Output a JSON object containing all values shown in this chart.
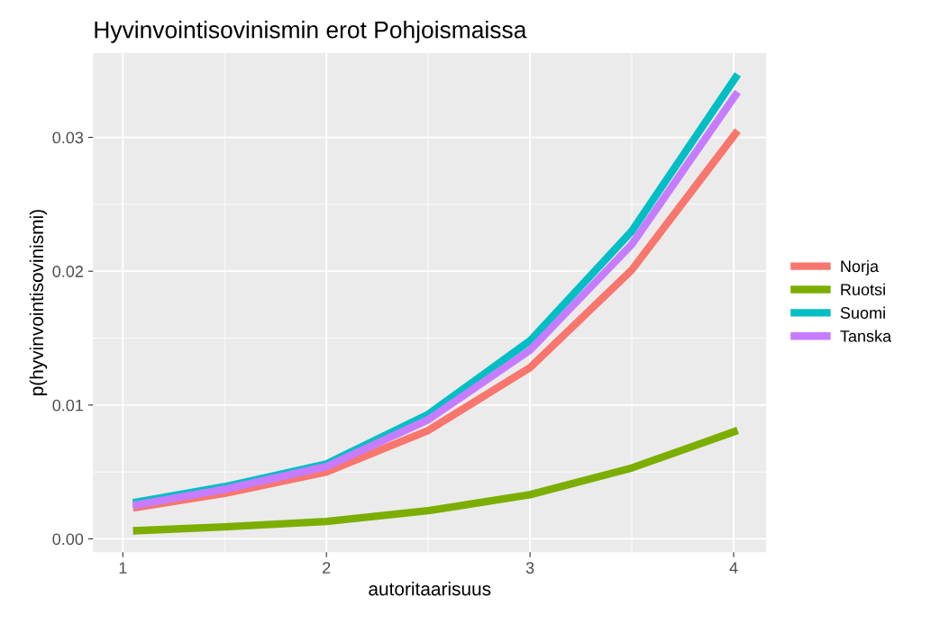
{
  "chart_data": {
    "type": "line",
    "title": "Hyvinvointisovinismin erot Pohjoismaissa",
    "xlabel": "autoritaarisuus",
    "ylabel": "p(hyvinvointisovinismi)",
    "legend": "right",
    "grid": true,
    "marker": "none",
    "line_style": "solid",
    "x": [
      1.05,
      1.5,
      2,
      2.5,
      3,
      3.5,
      4.02
    ],
    "xlim": [
      0.854,
      4.16
    ],
    "xticks": [
      1,
      2,
      3,
      4
    ],
    "ylim": [
      -0.001,
      0.0363
    ],
    "yticks": [
      {
        "value": 0,
        "label": "0.00"
      },
      {
        "value": 0.01,
        "label": "0.01"
      },
      {
        "value": 0.02,
        "label": "0.02"
      },
      {
        "value": 0.03,
        "label": "0.03"
      }
    ],
    "series": [
      {
        "name": "Norja",
        "color": "#f8766d",
        "values": [
          0.0023,
          0.0034,
          0.005,
          0.0081,
          0.0128,
          0.0201,
          0.0305
        ]
      },
      {
        "name": "Ruotsi",
        "color": "#7cae00",
        "values": [
          0.0006,
          0.0009,
          0.0013,
          0.0021,
          0.0033,
          0.0053,
          0.0081
        ]
      },
      {
        "name": "Suomi",
        "color": "#00bfc4",
        "values": [
          0.0027,
          0.0039,
          0.0056,
          0.0093,
          0.0148,
          0.023,
          0.0347
        ]
      },
      {
        "name": "Tanska",
        "color": "#c77cff",
        "values": [
          0.0025,
          0.0037,
          0.0054,
          0.0089,
          0.0141,
          0.022,
          0.0334
        ]
      }
    ]
  }
}
